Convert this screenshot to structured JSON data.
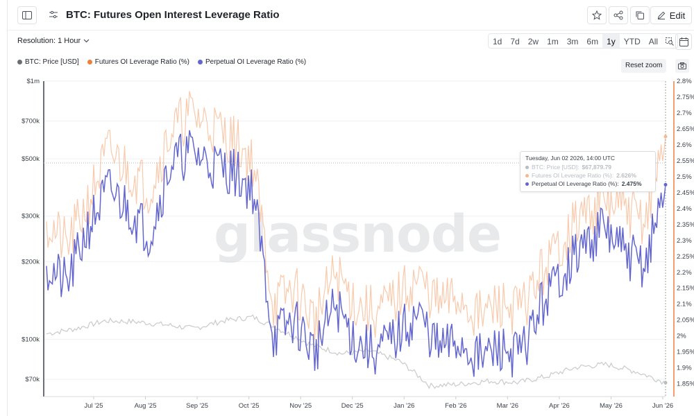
{
  "header": {
    "title": "BTC: Futures Open Interest Leverage Ratio",
    "edit_label": "Edit",
    "icons": [
      "sidebar-toggle-icon",
      "settings-sliders-icon",
      "star-icon",
      "share-icon",
      "copy-icon",
      "pencil-icon"
    ]
  },
  "toolbar": {
    "resolution_label": "Resolution: 1 Hour",
    "ranges": [
      "1d",
      "7d",
      "2w",
      "1m",
      "3m",
      "6m",
      "1y",
      "YTD",
      "All"
    ],
    "active_range": "1y",
    "reset_zoom_label": "Reset zoom"
  },
  "legend": [
    {
      "label": "BTC: Price [USD]",
      "color": "#6b6e73"
    },
    {
      "label": "Futures OI Leverage Ratio (%)",
      "color": "#f07f3c"
    },
    {
      "label": "Perpetual OI Leverage Ratio (%)",
      "color": "#6366cf"
    }
  ],
  "tooltip": {
    "date": "Tuesday, Jun 02 2026, 14:00 UTC",
    "rows": [
      {
        "label": "BTC: Price [USD]: ",
        "value": "$67,879.79",
        "color": "#b9bcc2"
      },
      {
        "label": "Futures OI Leverage Ratio (%): ",
        "value": "2.626%",
        "color": "#f5b894"
      },
      {
        "label": "Perpetual OI Leverage Ratio (%): ",
        "value": "2.475%",
        "color": "#6366cf"
      }
    ]
  },
  "chart_data": {
    "type": "line",
    "title": "BTC: Futures Open Interest Leverage Ratio",
    "watermark": "glassnode",
    "x_ticks": [
      "Jul '25",
      "Aug '25",
      "Sep '25",
      "Oct '25",
      "Nov '25",
      "Dec '25",
      "Jan '26",
      "Feb '26",
      "Mar '26",
      "Apr '26",
      "May '26",
      "Jun '26"
    ],
    "y_left": {
      "scale": "log",
      "range": [
        60000,
        1000000
      ],
      "ticks": [
        "$1m",
        "$700k",
        "$500k",
        "$300k",
        "$200k",
        "$100k",
        "$70k"
      ]
    },
    "y_right": {
      "scale": "linear",
      "range": [
        1.81,
        2.8
      ],
      "ticks": [
        "2.8%",
        "2.75%",
        "2.7%",
        "2.65%",
        "2.6%",
        "2.55%",
        "2.5%",
        "2.45%",
        "2.4%",
        "2.35%",
        "2.3%",
        "2.25%",
        "2.2%",
        "2.15%",
        "2.1%",
        "2.05%",
        "2%",
        "1.95%",
        "1.9%",
        "1.85%"
      ]
    },
    "x_month_index": [
      0,
      1,
      2,
      3,
      4,
      5,
      6,
      7,
      8,
      9,
      10,
      11
    ],
    "series": [
      {
        "name": "BTC: Price [USD]",
        "axis": "left",
        "color": "#c8cacd",
        "values": [
          105000,
          110000,
          118000,
          117000,
          114000,
          110000,
          118000,
          122000,
          108000,
          95000,
          88000,
          90000,
          82000,
          66000,
          67000,
          69000,
          68000,
          72000,
          78000,
          80000,
          75000,
          67900
        ]
      },
      {
        "name": "Futures OI Leverage Ratio (%)",
        "axis": "right",
        "color": "#f9c9ab",
        "values": [
          2.36,
          2.28,
          2.42,
          2.58,
          2.52,
          2.46,
          2.64,
          2.7,
          2.66,
          2.62,
          2.55,
          2.1,
          2.15,
          2.05,
          2.2,
          2.1,
          2.07,
          2.12,
          2.18,
          2.1,
          2.12,
          2.06,
          2.1,
          2.08,
          2.2,
          2.3,
          2.38,
          2.42,
          2.4,
          2.36,
          2.626
        ]
      },
      {
        "name": "Perpetual OI Leverage Ratio (%)",
        "axis": "right",
        "color": "#6366cf",
        "values": [
          2.22,
          2.16,
          2.34,
          2.46,
          2.4,
          2.32,
          2.54,
          2.58,
          2.54,
          2.52,
          2.46,
          2.0,
          2.05,
          1.95,
          2.1,
          1.98,
          1.95,
          2.0,
          2.07,
          1.96,
          1.98,
          1.93,
          1.96,
          1.94,
          2.1,
          2.2,
          2.28,
          2.34,
          2.26,
          2.22,
          2.475
        ]
      }
    ],
    "crosshair": {
      "date": "Tuesday, Jun 02 2026, 14:00 UTC",
      "price": 67879.79,
      "futures": 2.626,
      "perpetual": 2.475
    }
  }
}
